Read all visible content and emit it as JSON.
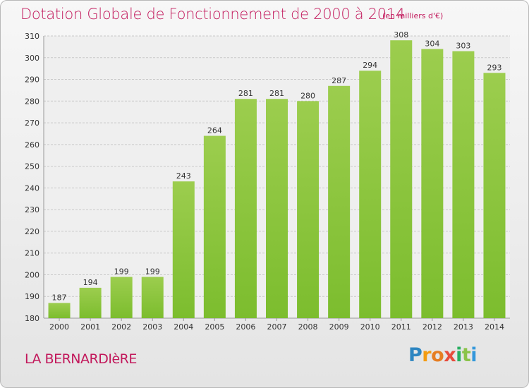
{
  "chart_data": {
    "type": "bar",
    "title": "Dotation Globale de Fonctionnement de 2000 à 2014",
    "subtitle": "(en milliers d'€)",
    "categories": [
      "2000",
      "2001",
      "2002",
      "2003",
      "2004",
      "2005",
      "2006",
      "2007",
      "2008",
      "2009",
      "2010",
      "2011",
      "2012",
      "2013",
      "2014"
    ],
    "values": [
      187,
      194,
      199,
      199,
      243,
      264,
      281,
      281,
      280,
      287,
      294,
      308,
      304,
      303,
      293
    ],
    "ylim": [
      180,
      310
    ],
    "yticks": [
      180,
      190,
      200,
      210,
      220,
      230,
      240,
      250,
      260,
      270,
      280,
      290,
      300,
      310
    ],
    "grid": true,
    "bar_color": "#7cbd2e",
    "bar_color_light": "#9ccd4e"
  },
  "footer": {
    "place": "LA BERNARDIèRE",
    "brand": "Proxiti"
  },
  "colors": {
    "title": "#c2185b"
  }
}
